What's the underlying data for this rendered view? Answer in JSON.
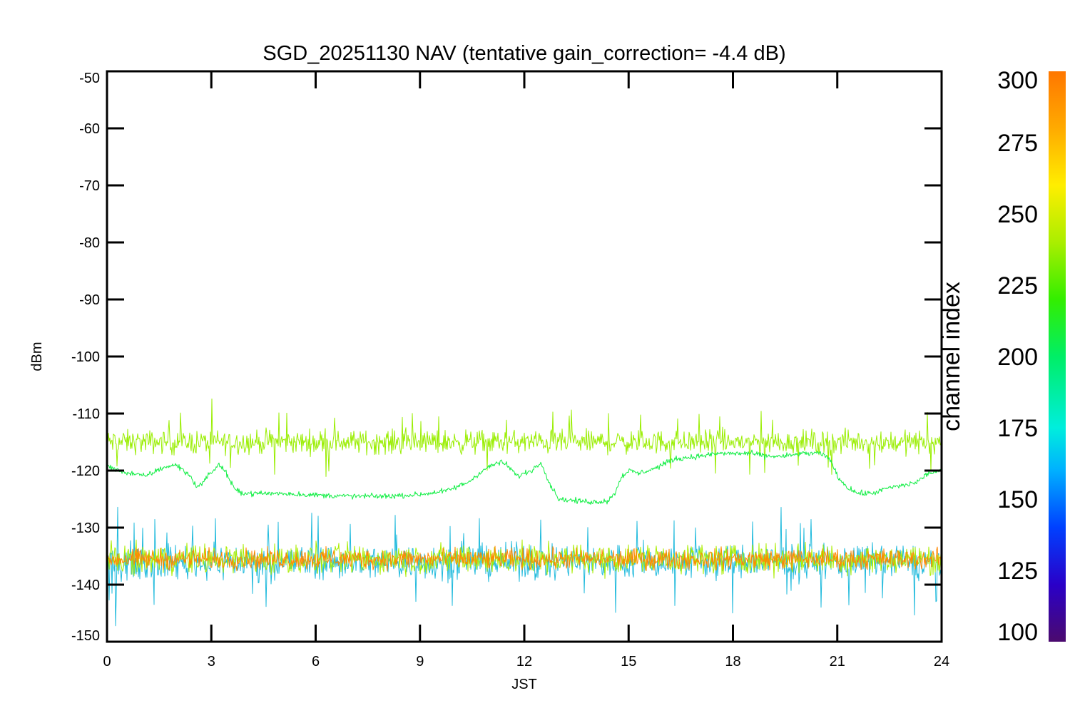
{
  "chart_data": {
    "type": "line",
    "title": "SGD_20251130 NAV (tentative gain_correction= -4.4 dB)",
    "xlabel": "JST",
    "ylabel": "dBm",
    "xlim": [
      0,
      24
    ],
    "ylim": [
      -150,
      -50
    ],
    "xticks": [
      "0",
      "3",
      "6",
      "9",
      "12",
      "15",
      "18",
      "21",
      "24"
    ],
    "yticks": [
      "-50",
      "-60",
      "-70",
      "-80",
      "-90",
      "-100",
      "-110",
      "-120",
      "-130",
      "-140",
      "-150"
    ],
    "colorbar": {
      "label": "channel index",
      "range": [
        100,
        300
      ],
      "ticks": [
        "300",
        "275",
        "250",
        "225",
        "200",
        "175",
        "150",
        "125",
        "100"
      ],
      "colormap": "rainbow"
    },
    "series": [
      {
        "name": "upper-band",
        "channel": 262,
        "color": "#99ee00",
        "mean": -115,
        "spread": 3,
        "spikes": true
      },
      {
        "name": "satellite-trace",
        "channel": 228,
        "color": "#11ee44",
        "spread": 0.7,
        "x": [
          0,
          0.3,
          0.7,
          1.1,
          1.6,
          2.0,
          2.4,
          2.6,
          2.9,
          3.2,
          3.4,
          3.55,
          3.7,
          4.0,
          5.0,
          6.0,
          7.0,
          8.0,
          9.0,
          9.8,
          10.4,
          10.8,
          11.1,
          11.3,
          11.5,
          11.8,
          12.2,
          12.5,
          12.7,
          13.0,
          13.5,
          14.0,
          14.4,
          14.6,
          14.8,
          15.0,
          15.3,
          15.8,
          16.3,
          17.0,
          17.6,
          18.0,
          18.5,
          19.0,
          19.5,
          20.0,
          20.5,
          20.8,
          21.0,
          21.3,
          21.6,
          22.0,
          22.5,
          23.0,
          23.3,
          23.6,
          24.0
        ],
        "y": [
          -119,
          -120,
          -120.5,
          -121,
          -119.5,
          -119,
          -121,
          -123,
          -121,
          -119,
          -120,
          -122,
          -123.5,
          -124,
          -124,
          -124.3,
          -124.5,
          -124.5,
          -124.2,
          -123.5,
          -122,
          -120,
          -119,
          -118.5,
          -119,
          -121,
          -120,
          -118.5,
          -122,
          -125,
          -125.3,
          -125.5,
          -125.3,
          -124,
          -121,
          -120,
          -120.5,
          -119.5,
          -118,
          -117.5,
          -117,
          -117,
          -117,
          -117.5,
          -117.5,
          -117,
          -117,
          -118,
          -121,
          -123,
          -124,
          -124,
          -123,
          -122.5,
          -122,
          -120.5,
          -120
        ]
      },
      {
        "name": "lower-band-low-channels",
        "channel": 180,
        "color": "#22bbdd",
        "mean": -136,
        "spread": 4.5,
        "spikes": true
      },
      {
        "name": "lower-band-mid-channels",
        "channel": 262,
        "color": "#aaee00",
        "mean": -135.5,
        "spread": 3.8
      },
      {
        "name": "lower-band-high-channels",
        "channel": 295,
        "color": "#ff8800",
        "mean": -135.5,
        "spread": 2.6
      }
    ]
  }
}
